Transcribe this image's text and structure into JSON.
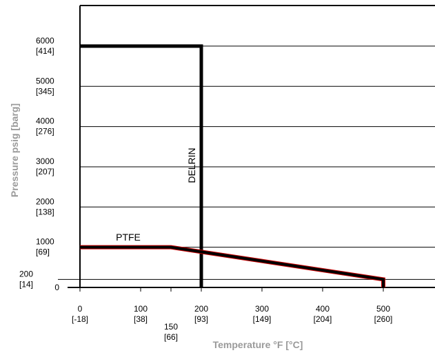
{
  "chart_data": {
    "type": "line",
    "xlabel": "Temperature °F [°C]",
    "ylabel": "Pressure psig [barg]",
    "xlim": [
      0,
      585
    ],
    "ylim": [
      0,
      6950
    ],
    "grid": true,
    "x_ticks": [
      {
        "value": 0,
        "f": "0",
        "c": "[-18]"
      },
      {
        "value": 100,
        "f": "100",
        "c": "[38]"
      },
      {
        "value": 150,
        "f": "150",
        "c": "[66]"
      },
      {
        "value": 200,
        "f": "200",
        "c": "[93]"
      },
      {
        "value": 300,
        "f": "300",
        "c": "[149]"
      },
      {
        "value": 400,
        "f": "400",
        "c": "[204]"
      },
      {
        "value": 500,
        "f": "500",
        "c": "[260]"
      }
    ],
    "y_ticks": [
      {
        "value": 0,
        "psi": "0",
        "bar": ""
      },
      {
        "value": 200,
        "psi": "200",
        "bar": "[14]"
      },
      {
        "value": 1000,
        "psi": "1000",
        "bar": "[69]"
      },
      {
        "value": 2000,
        "psi": "2000",
        "bar": "[138]"
      },
      {
        "value": 3000,
        "psi": "3000",
        "bar": "[207]"
      },
      {
        "value": 4000,
        "psi": "4000",
        "bar": "[276]"
      },
      {
        "value": 5000,
        "psi": "5000",
        "bar": "[345]"
      },
      {
        "value": 6000,
        "psi": "6000",
        "bar": "[414]"
      }
    ],
    "series": [
      {
        "name": "DELRIN",
        "color": "#000000",
        "points": [
          [
            0,
            6000
          ],
          [
            200,
            6000
          ],
          [
            200,
            0
          ]
        ]
      },
      {
        "name": "PTFE",
        "color": "#000000",
        "accent": "#cc0000",
        "points": [
          [
            0,
            1000
          ],
          [
            150,
            1000
          ],
          [
            500,
            200
          ],
          [
            500,
            0
          ]
        ]
      }
    ]
  }
}
